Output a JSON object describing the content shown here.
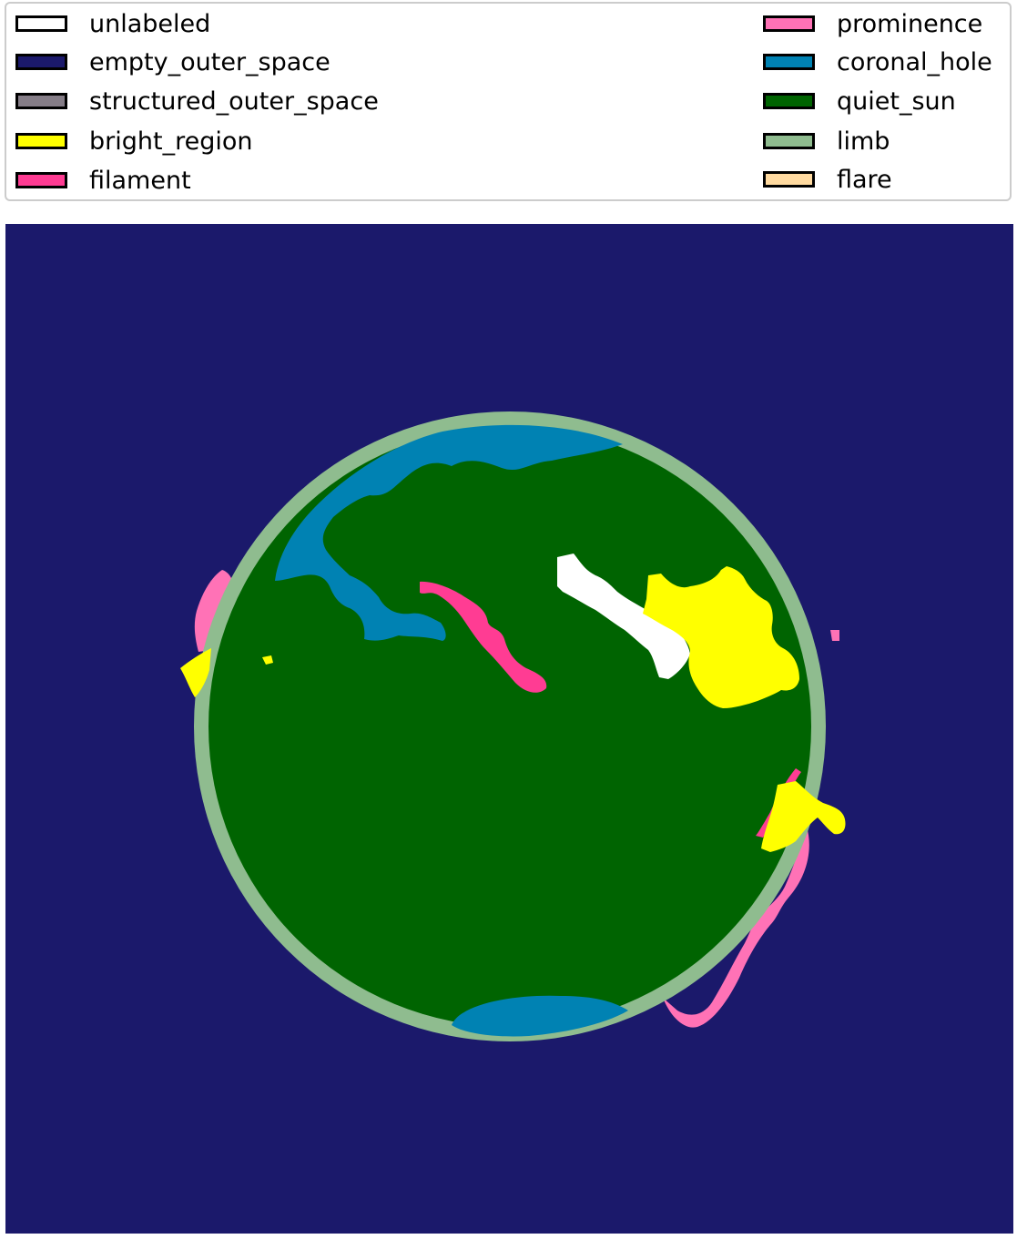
{
  "legend": {
    "items": [
      {
        "label": "unlabeled",
        "color": "#ffffff"
      },
      {
        "label": "empty_outer_space",
        "color": "#1b196b"
      },
      {
        "label": "structured_outer_space",
        "color": "#857d87"
      },
      {
        "label": "bright_region",
        "color": "#ffff00"
      },
      {
        "label": "filament",
        "color": "#ff3c93"
      },
      {
        "label": "prominence",
        "color": "#ff72b6"
      },
      {
        "label": "coronal_hole",
        "color": "#0082b3"
      },
      {
        "label": "quiet_sun",
        "color": "#006401"
      },
      {
        "label": "limb",
        "color": "#8fbc8f"
      },
      {
        "label": "flare",
        "color": "#ffdaa0"
      }
    ]
  }
}
